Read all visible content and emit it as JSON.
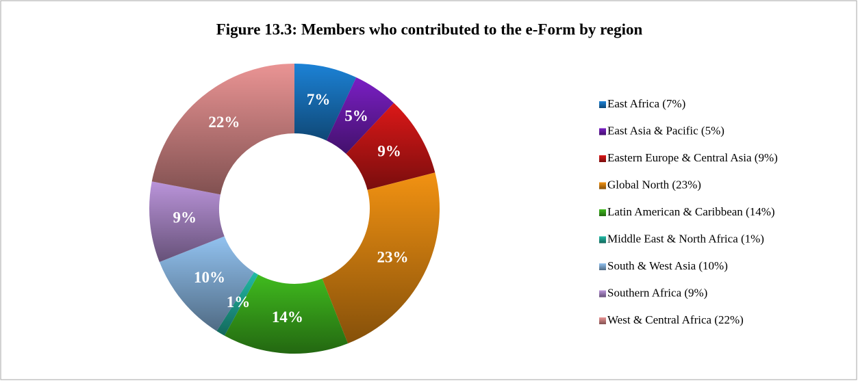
{
  "chart_data": {
    "type": "pie",
    "donut": true,
    "title": "Figure 13.3: Members who contributed to the e-Form by region",
    "categories": [
      "East Africa (7%)",
      "East Asia & Pacific (5%)",
      "Eastern Europe & Central Asia (9%)",
      "Global North (23%)",
      "Latin American & Caribbean (14%)",
      "Middle East & North Africa (1%)",
      "South & West Asia (10%)",
      "Southern Africa (9%)",
      "West & Central Africa (22%)"
    ],
    "values": [
      7,
      5,
      9,
      23,
      14,
      1,
      10,
      9,
      22
    ],
    "value_labels": [
      "7%",
      "5%",
      "9%",
      "23%",
      "14%",
      "1%",
      "10%",
      "9%",
      "22%"
    ],
    "colors": [
      "#1c82d6",
      "#7a1fc4",
      "#dc1818",
      "#f29212",
      "#40bb1e",
      "#22bba6",
      "#92c2f0",
      "#ba94da",
      "#ea9494"
    ],
    "legend": "right"
  }
}
